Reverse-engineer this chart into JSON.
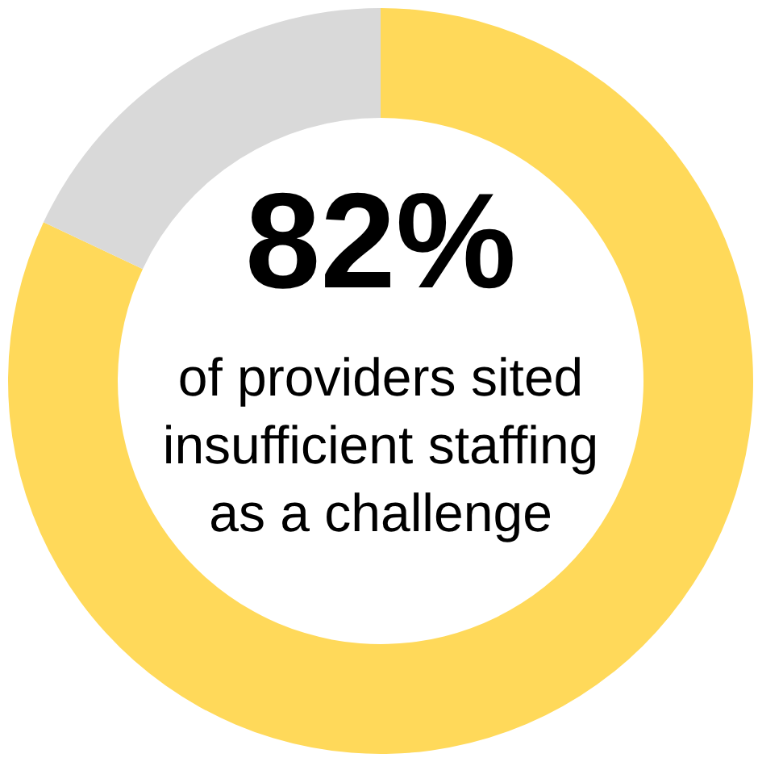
{
  "chart_data": {
    "type": "donut",
    "categories": [
      null,
      null
    ],
    "values": [
      82,
      18
    ],
    "colors": [
      "#ffd95a",
      "#d9d9d9"
    ],
    "annotations": [
      "82%",
      "of providers sited insufficient staffing as a challenge"
    ]
  }
}
